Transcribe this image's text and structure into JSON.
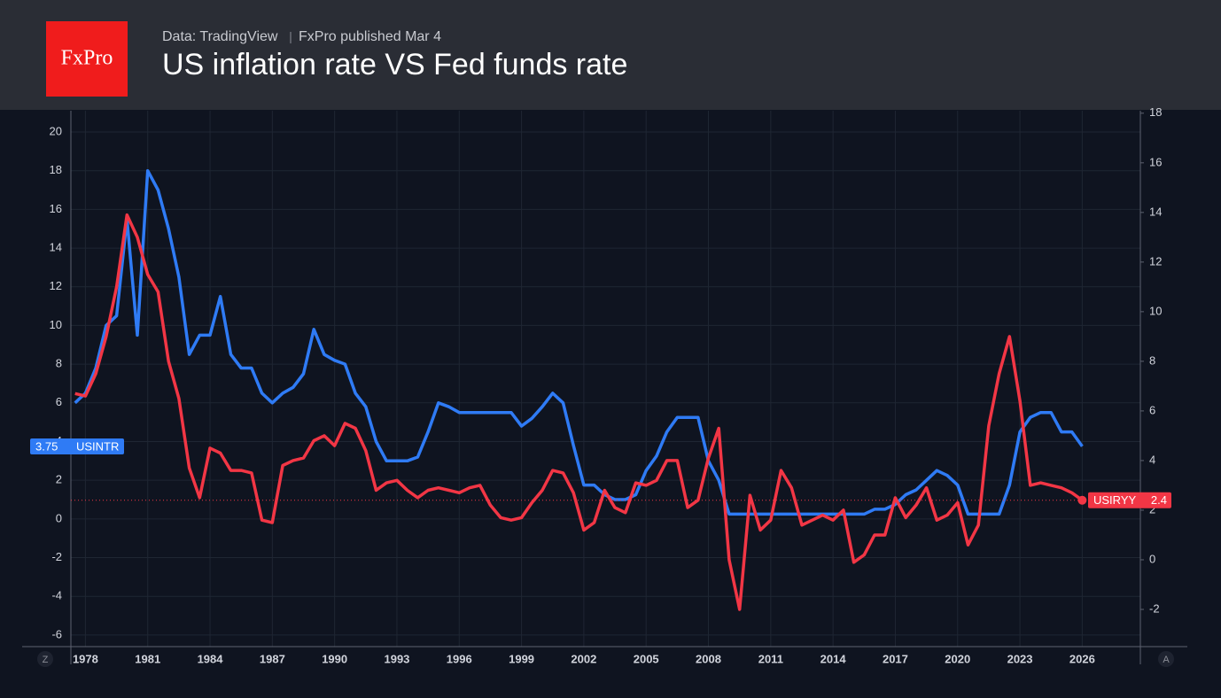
{
  "header": {
    "logo": "FxPro"
  },
  "ui": {
    "left_button": "Z",
    "right_button": "A"
  },
  "chart_data": {
    "type": "line",
    "title": "US inflation rate VS Fed funds rate",
    "source": "Data: TradingView",
    "published": "FxPro published Mar 4",
    "grid": true,
    "x": [
      1977.5,
      1978,
      1978.5,
      1979,
      1979.5,
      1980,
      1980.5,
      1981,
      1981.5,
      1982,
      1982.5,
      1983,
      1983.5,
      1984,
      1984.5,
      1985,
      1985.5,
      1986,
      1986.5,
      1987,
      1987.5,
      1988,
      1988.5,
      1989,
      1989.5,
      1990,
      1990.5,
      1991,
      1991.5,
      1992,
      1992.5,
      1993,
      1993.5,
      1994,
      1994.5,
      1995,
      1995.5,
      1996,
      1996.5,
      1997,
      1997.5,
      1998,
      1998.5,
      1999,
      1999.5,
      2000,
      2000.5,
      2001,
      2001.5,
      2002,
      2002.5,
      2003,
      2003.5,
      2004,
      2004.5,
      2005,
      2005.5,
      2006,
      2006.5,
      2007,
      2007.5,
      2008,
      2008.5,
      2009,
      2009.5,
      2010,
      2010.5,
      2011,
      2011.5,
      2012,
      2012.5,
      2013,
      2013.5,
      2014,
      2014.5,
      2015,
      2015.5,
      2016,
      2016.5,
      2017,
      2017.5,
      2018,
      2018.5,
      2019,
      2019.5,
      2020,
      2020.5,
      2021,
      2021.5,
      2022,
      2022.5,
      2023,
      2023.5,
      2024,
      2024.5,
      2025,
      2025.5,
      2026
    ],
    "xlim": [
      1977.3,
      2028.8
    ],
    "xticks": [
      1978,
      1981,
      1984,
      1987,
      1990,
      1993,
      1996,
      1999,
      2002,
      2005,
      2008,
      2011,
      2014,
      2017,
      2020,
      2023,
      2026
    ],
    "ylim": [
      -6.6,
      21.1
    ],
    "yticks": [
      -6,
      -4,
      -2,
      0,
      2,
      4,
      6,
      8,
      10,
      12,
      14,
      16,
      18,
      20
    ],
    "y2lim": [
      -3.5,
      18.1
    ],
    "y2ticks": [
      -2,
      0,
      2,
      4,
      6,
      8,
      10,
      12,
      14,
      16,
      18
    ],
    "series": [
      {
        "name": "USINTR",
        "color": "#2f7bf5",
        "axis": "y",
        "values": [
          6.0,
          6.5,
          7.8,
          10.0,
          10.5,
          15.5,
          9.5,
          18.0,
          17.0,
          15.0,
          12.5,
          8.5,
          9.5,
          9.5,
          11.5,
          8.5,
          7.8,
          7.8,
          6.5,
          6.0,
          6.5,
          6.8,
          7.5,
          9.8,
          8.5,
          8.2,
          8.0,
          6.5,
          5.8,
          4.0,
          3.0,
          3.0,
          3.0,
          3.2,
          4.5,
          6.0,
          5.8,
          5.5,
          5.5,
          5.5,
          5.5,
          5.5,
          5.5,
          4.8,
          5.2,
          5.8,
          6.5,
          6.0,
          3.8,
          1.75,
          1.75,
          1.25,
          1.0,
          1.0,
          1.25,
          2.5,
          3.25,
          4.5,
          5.25,
          5.25,
          5.25,
          3.0,
          2.0,
          0.25,
          0.25,
          0.25,
          0.25,
          0.25,
          0.25,
          0.25,
          0.25,
          0.25,
          0.25,
          0.25,
          0.25,
          0.25,
          0.25,
          0.5,
          0.5,
          0.75,
          1.25,
          1.5,
          2.0,
          2.5,
          2.25,
          1.75,
          0.25,
          0.25,
          0.25,
          0.25,
          1.75,
          4.5,
          5.25,
          5.5,
          5.5,
          4.5,
          4.5,
          3.75
        ]
      },
      {
        "name": "USIRYY",
        "color": "#f23645",
        "axis": "y2",
        "values": [
          6.7,
          6.6,
          7.5,
          9.0,
          11.0,
          13.9,
          13.0,
          11.5,
          10.8,
          8.0,
          6.5,
          3.7,
          2.5,
          4.5,
          4.3,
          3.6,
          3.6,
          3.5,
          1.6,
          1.5,
          3.8,
          4.0,
          4.1,
          4.8,
          5.0,
          4.6,
          5.5,
          5.3,
          4.4,
          2.8,
          3.1,
          3.2,
          2.8,
          2.5,
          2.8,
          2.9,
          2.8,
          2.7,
          2.9,
          3.0,
          2.2,
          1.7,
          1.6,
          1.7,
          2.3,
          2.8,
          3.6,
          3.5,
          2.7,
          1.2,
          1.5,
          2.8,
          2.1,
          1.9,
          3.1,
          3.0,
          3.2,
          4.0,
          4.0,
          2.1,
          2.4,
          4.1,
          5.3,
          0.0,
          -2.0,
          2.6,
          1.2,
          1.6,
          3.6,
          2.9,
          1.4,
          1.6,
          1.8,
          1.6,
          2.0,
          -0.1,
          0.2,
          1.0,
          1.0,
          2.5,
          1.7,
          2.2,
          2.9,
          1.6,
          1.8,
          2.3,
          0.6,
          1.4,
          5.4,
          7.5,
          9.0,
          6.4,
          3.0,
          3.1,
          3.0,
          2.9,
          2.7,
          2.4
        ]
      }
    ]
  }
}
